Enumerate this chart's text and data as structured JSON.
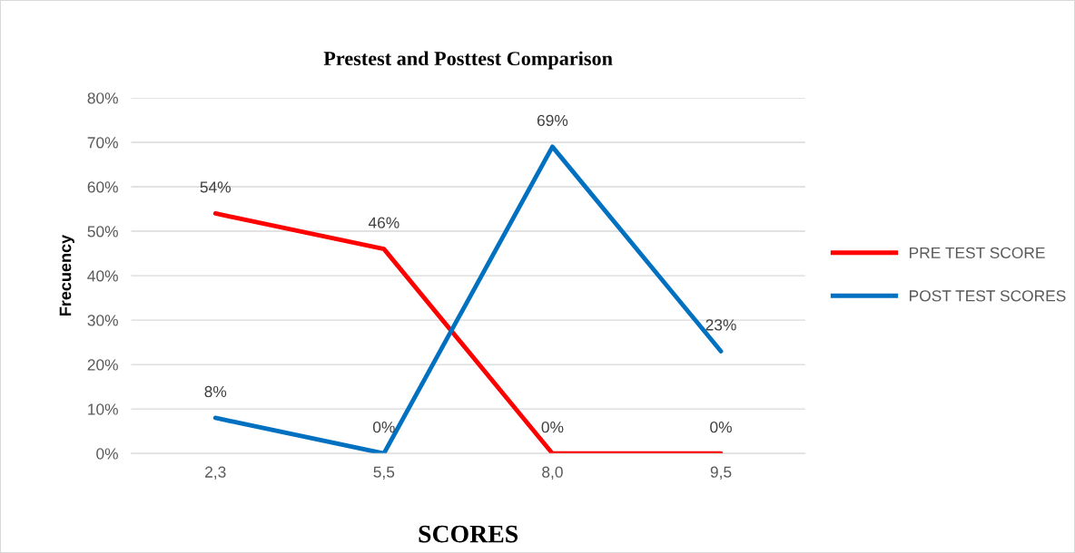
{
  "chart_data": {
    "type": "line",
    "title": "Prestest and Posttest Comparison",
    "xlabel": "SCORES",
    "ylabel": "Frecuency",
    "categories": [
      "2,3",
      "5,5",
      "8,0",
      "9,5"
    ],
    "series": [
      {
        "name": "PRE TEST SCORE",
        "color": "#ff0000",
        "values": [
          54,
          46,
          0,
          0
        ],
        "value_labels": [
          "54%",
          "46%",
          "0%",
          "0%"
        ]
      },
      {
        "name": "POST TEST SCORES",
        "color": "#0070c0",
        "values": [
          8,
          0,
          69,
          23
        ],
        "value_labels": [
          "8%",
          "0%",
          "69%",
          "23%"
        ]
      }
    ],
    "ylim": [
      0,
      80
    ],
    "yticks": [
      {
        "value": 0,
        "label": "0%"
      },
      {
        "value": 10,
        "label": "10%"
      },
      {
        "value": 20,
        "label": "20%"
      },
      {
        "value": 30,
        "label": "30%"
      },
      {
        "value": 40,
        "label": "40%"
      },
      {
        "value": 50,
        "label": "50%"
      },
      {
        "value": 60,
        "label": "60%"
      },
      {
        "value": 70,
        "label": "70%"
      },
      {
        "value": 80,
        "label": "80%"
      }
    ],
    "grid": "y",
    "legend": "right",
    "marker": "none",
    "line_style": "solid"
  }
}
